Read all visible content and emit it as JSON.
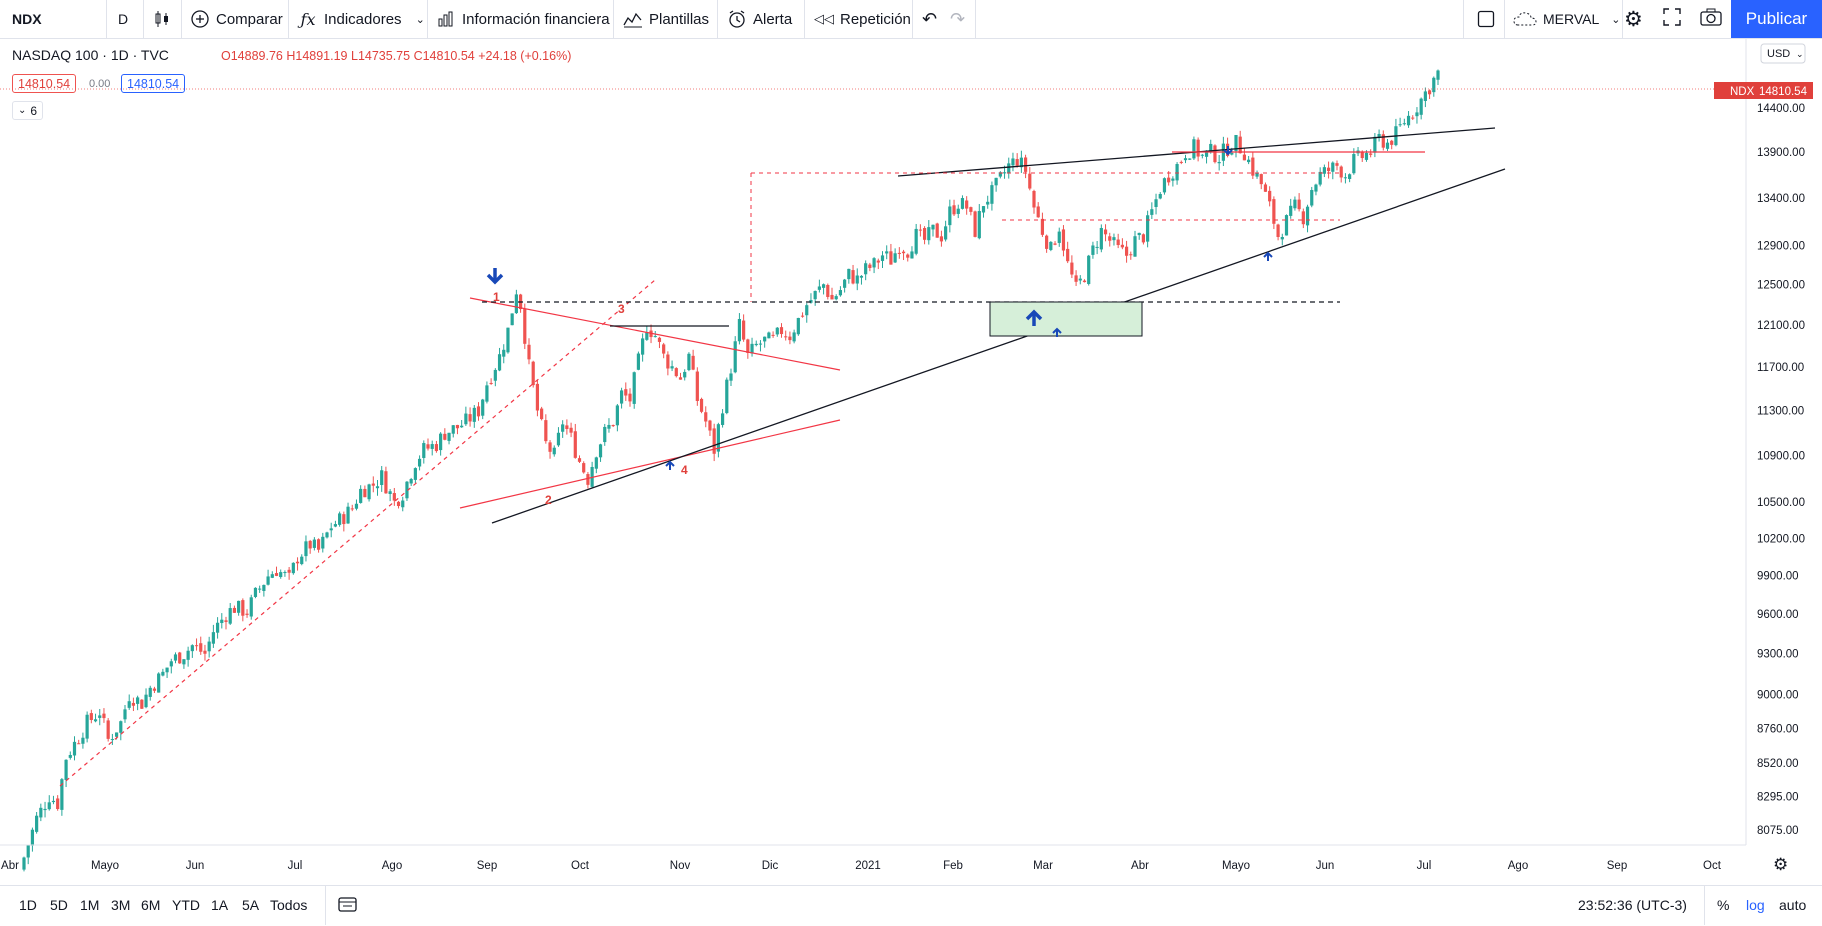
{
  "toolbar": {
    "symbol": "NDX",
    "interval": "D",
    "compare_label": "Comparar",
    "indicators_label": "Indicadores",
    "financials_label": "Información financiera",
    "templates_label": "Plantillas",
    "alert_label": "Alerta",
    "replay_label": "Repetición",
    "layout_name": "MERVAL",
    "publish_label": "Publicar"
  },
  "legend": {
    "title": "NASDAQ 100 · 1D · TVC",
    "open": "O14889.76",
    "high": "H14891.19",
    "low": "L14735.75",
    "close": "C14810.54",
    "change": "+24.18 (+0.16%)",
    "bid": "14810.54",
    "spread": "0.00",
    "ask": "14810.54",
    "collapsed_indicators": "6"
  },
  "price_axis": {
    "currency": "USD",
    "last_symbol": "NDX",
    "last_price": "14810.54"
  },
  "bottom": {
    "ranges": [
      "1D",
      "5D",
      "1M",
      "3M",
      "6M",
      "YTD",
      "1A",
      "5A",
      "Todos"
    ],
    "clock": "23:52:36 (UTC-3)",
    "percent": "%",
    "log": "log",
    "auto": "auto"
  },
  "colors": {
    "up": "#26a69a",
    "down": "#ef5350",
    "accent": "#2962ff",
    "trendline_red": "#f23645",
    "trendline_black": "#131722",
    "zone_fill": "#d6efd9"
  },
  "chart_data": {
    "type": "candlestick",
    "title": "NASDAQ 100 · 1D · TVC",
    "ylim": [
      7850,
      15300
    ],
    "yticks": [
      "14400.00",
      "13900.00",
      "13400.00",
      "12900.00",
      "12500.00",
      "12100.00",
      "11700.00",
      "11300.00",
      "10900.00",
      "10500.00",
      "10200.00",
      "9900.00",
      "9600.00",
      "9300.00",
      "9000.00",
      "8760.00",
      "8520.00",
      "8295.00",
      "8075.00"
    ],
    "xticks": [
      "Abr",
      "Mayo",
      "Jun",
      "Jul",
      "Ago",
      "Sep",
      "Oct",
      "Nov",
      "Dic",
      "2021",
      "Feb",
      "Mar",
      "Abr",
      "Mayo",
      "Jun",
      "Jul",
      "Ago",
      "Sep",
      "Oct"
    ],
    "close_path": [
      [
        0,
        7900
      ],
      [
        3,
        8150
      ],
      [
        6,
        8300
      ],
      [
        8,
        8250
      ],
      [
        10,
        8560
      ],
      [
        13,
        8700
      ],
      [
        15,
        8800
      ],
      [
        18,
        8880
      ],
      [
        20,
        8680
      ],
      [
        23,
        8800
      ],
      [
        25,
        9000
      ],
      [
        28,
        8940
      ],
      [
        30,
        9050
      ],
      [
        33,
        9150
      ],
      [
        35,
        9250
      ],
      [
        38,
        9300
      ],
      [
        40,
        9360
      ],
      [
        43,
        9300
      ],
      [
        45,
        9470
      ],
      [
        48,
        9600
      ],
      [
        50,
        9650
      ],
      [
        53,
        9620
      ],
      [
        55,
        9750
      ],
      [
        58,
        9900
      ],
      [
        60,
        9950
      ],
      [
        63,
        9870
      ],
      [
        65,
        10050
      ],
      [
        68,
        10150
      ],
      [
        70,
        10100
      ],
      [
        73,
        10300
      ],
      [
        75,
        10350
      ],
      [
        78,
        10450
      ],
      [
        80,
        10600
      ],
      [
        83,
        10650
      ],
      [
        85,
        10720
      ],
      [
        88,
        10500
      ],
      [
        90,
        10580
      ],
      [
        93,
        10850
      ],
      [
        95,
        10950
      ],
      [
        98,
        11000
      ],
      [
        100,
        11100
      ],
      [
        103,
        11150
      ],
      [
        105,
        11200
      ],
      [
        108,
        11300
      ],
      [
        110,
        11550
      ],
      [
        113,
        11800
      ],
      [
        115,
        12050
      ],
      [
        117,
        12450
      ],
      [
        118,
        12300
      ],
      [
        120,
        11700
      ],
      [
        122,
        11300
      ],
      [
        124,
        11000
      ],
      [
        126,
        10900
      ],
      [
        128,
        11200
      ],
      [
        130,
        11050
      ],
      [
        132,
        10850
      ],
      [
        134,
        10700
      ],
      [
        136,
        10950
      ],
      [
        138,
        11100
      ],
      [
        140,
        11200
      ],
      [
        142,
        11450
      ],
      [
        144,
        11400
      ],
      [
        146,
        11750
      ],
      [
        148,
        12100
      ],
      [
        150,
        12000
      ],
      [
        152,
        11800
      ],
      [
        154,
        11700
      ],
      [
        156,
        11600
      ],
      [
        158,
        11800
      ],
      [
        160,
        11400
      ],
      [
        162,
        11200
      ],
      [
        164,
        10950
      ],
      [
        166,
        11350
      ],
      [
        168,
        11700
      ],
      [
        170,
        12100
      ],
      [
        172,
        11800
      ],
      [
        174,
        11900
      ],
      [
        176,
        11950
      ],
      [
        178,
        11950
      ],
      [
        180,
        12050
      ],
      [
        182,
        12000
      ],
      [
        184,
        12150
      ],
      [
        186,
        12300
      ],
      [
        188,
        12400
      ],
      [
        190,
        12500
      ],
      [
        192,
        12350
      ],
      [
        194,
        12450
      ],
      [
        196,
        12600
      ],
      [
        198,
        12550
      ],
      [
        200,
        12650
      ],
      [
        202,
        12700
      ],
      [
        204,
        12800
      ],
      [
        206,
        12750
      ],
      [
        208,
        12900
      ],
      [
        210,
        12850
      ],
      [
        212,
        13000
      ],
      [
        214,
        12950
      ],
      [
        216,
        13050
      ],
      [
        218,
        13000
      ],
      [
        220,
        13250
      ],
      [
        222,
        13350
      ],
      [
        224,
        13300
      ],
      [
        226,
        13050
      ],
      [
        228,
        13350
      ],
      [
        230,
        13450
      ],
      [
        232,
        13600
      ],
      [
        234,
        13750
      ],
      [
        236,
        13820
      ],
      [
        238,
        13700
      ],
      [
        240,
        13300
      ],
      [
        242,
        13050
      ],
      [
        244,
        12850
      ],
      [
        246,
        13100
      ],
      [
        248,
        12700
      ],
      [
        250,
        12450
      ],
      [
        252,
        12600
      ],
      [
        254,
        12850
      ],
      [
        256,
        13050
      ],
      [
        258,
        12950
      ],
      [
        260,
        12850
      ],
      [
        262,
        12800
      ],
      [
        264,
        12950
      ],
      [
        266,
        13000
      ],
      [
        268,
        13250
      ],
      [
        270,
        13500
      ],
      [
        272,
        13650
      ],
      [
        274,
        13750
      ],
      [
        276,
        13900
      ],
      [
        278,
        13950
      ],
      [
        280,
        13850
      ],
      [
        282,
        13900
      ],
      [
        284,
        13850
      ],
      [
        286,
        13950
      ],
      [
        288,
        14000
      ],
      [
        290,
        13900
      ],
      [
        292,
        13700
      ],
      [
        294,
        13550
      ],
      [
        296,
        13300
      ],
      [
        298,
        13000
      ],
      [
        300,
        13150
      ],
      [
        302,
        13300
      ],
      [
        304,
        13200
      ],
      [
        306,
        13500
      ],
      [
        308,
        13650
      ],
      [
        310,
        13700
      ],
      [
        312,
        13750
      ],
      [
        314,
        13650
      ],
      [
        316,
        13800
      ],
      [
        318,
        13850
      ],
      [
        320,
        13900
      ],
      [
        322,
        14050
      ],
      [
        324,
        14000
      ],
      [
        326,
        14100
      ],
      [
        328,
        14250
      ],
      [
        330,
        14350
      ],
      [
        332,
        14500
      ],
      [
        334,
        14650
      ],
      [
        336,
        14810
      ]
    ],
    "annotations": [
      "1",
      "2",
      "3",
      "4"
    ]
  }
}
